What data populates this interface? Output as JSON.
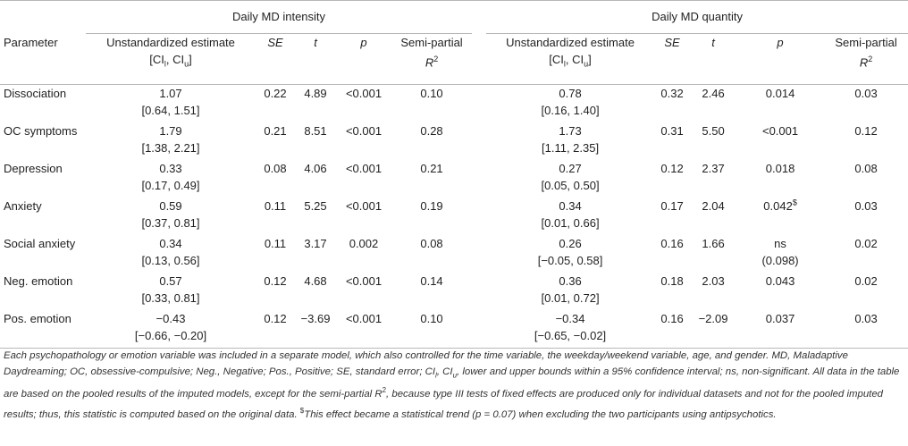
{
  "groups": {
    "intensity": "Daily MD intensity",
    "quantity": "Daily MD quantity"
  },
  "headers": {
    "parameter": "Parameter",
    "estimate": "Unstandardized estimate",
    "ci_open": "[CI",
    "ci_l": "l",
    "ci_sep": ", CI",
    "ci_u": "u",
    "ci_close": "]",
    "se": "SE",
    "t": "t",
    "p": "p",
    "semi": "Semi-partial",
    "r": "R",
    "r_sup": "2"
  },
  "rows": [
    {
      "param": "Dissociation",
      "i_est": "1.07",
      "i_ci": "[0.64, 1.51]",
      "i_se": "0.22",
      "i_t": "4.89",
      "i_p": "<0.001",
      "i_r2": "0.10",
      "q_est": "0.78",
      "q_ci": "[0.16, 1.40]",
      "q_se": "0.32",
      "q_t": "2.46",
      "q_p": "0.014",
      "q_p2": "",
      "q_p_sup": "",
      "q_r2": "0.03"
    },
    {
      "param": "OC symptoms",
      "i_est": "1.79",
      "i_ci": "[1.38, 2.21]",
      "i_se": "0.21",
      "i_t": "8.51",
      "i_p": "<0.001",
      "i_r2": "0.28",
      "q_est": "1.73",
      "q_ci": "[1.11, 2.35]",
      "q_se": "0.31",
      "q_t": "5.50",
      "q_p": "<0.001",
      "q_p2": "",
      "q_p_sup": "",
      "q_r2": "0.12"
    },
    {
      "param": "Depression",
      "i_est": "0.33",
      "i_ci": "[0.17, 0.49]",
      "i_se": "0.08",
      "i_t": "4.06",
      "i_p": "<0.001",
      "i_r2": "0.21",
      "q_est": "0.27",
      "q_ci": "[0.05, 0.50]",
      "q_se": "0.12",
      "q_t": "2.37",
      "q_p": "0.018",
      "q_p2": "",
      "q_p_sup": "",
      "q_r2": "0.08"
    },
    {
      "param": "Anxiety",
      "i_est": "0.59",
      "i_ci": "[0.37, 0.81]",
      "i_se": "0.11",
      "i_t": "5.25",
      "i_p": "<0.001",
      "i_r2": "0.19",
      "q_est": "0.34",
      "q_ci": "[0.01, 0.66]",
      "q_se": "0.17",
      "q_t": "2.04",
      "q_p": "0.042",
      "q_p2": "",
      "q_p_sup": "$",
      "q_r2": "0.03"
    },
    {
      "param": "Social anxiety",
      "i_est": "0.34",
      "i_ci": "[0.13, 0.56]",
      "i_se": "0.11",
      "i_t": "3.17",
      "i_p": "0.002",
      "i_r2": "0.08",
      "q_est": "0.26",
      "q_ci": "[−0.05, 0.58]",
      "q_se": "0.16",
      "q_t": "1.66",
      "q_p": "ns",
      "q_p2": "(0.098)",
      "q_p_sup": "",
      "q_r2": "0.02"
    },
    {
      "param": "Neg. emotion",
      "i_est": "0.57",
      "i_ci": "[0.33, 0.81]",
      "i_se": "0.12",
      "i_t": "4.68",
      "i_p": "<0.001",
      "i_r2": "0.14",
      "q_est": "0.36",
      "q_ci": "[0.01, 0.72]",
      "q_se": "0.18",
      "q_t": "2.03",
      "q_p": "0.043",
      "q_p2": "",
      "q_p_sup": "",
      "q_r2": "0.02"
    },
    {
      "param": "Pos. emotion",
      "i_est": "−0.43",
      "i_ci": "[−0.66, −0.20]",
      "i_se": "0.12",
      "i_t": "−3.69",
      "i_p": "<0.001",
      "i_r2": "0.10",
      "q_est": "−0.34",
      "q_ci": "[−0.65, −0.02]",
      "q_se": "0.16",
      "q_t": "−2.09",
      "q_p": "0.037",
      "q_p2": "",
      "q_p_sup": "",
      "q_r2": "0.03"
    }
  ],
  "note": {
    "main": "Each psychopathology or emotion variable was included in a separate model, which also controlled for the time variable, the weekday/weekend variable, age, and gender. MD, Maladaptive Daydreaming; OC, obsessive-compulsive; Neg., Negative; Pos., Positive; SE, standard error; CI",
    "sub_l": "l",
    "mid1": ", CI",
    "sub_u": "u",
    "mid2": ", lower and upper bounds within a 95% confidence interval; ns, non-significant. All data in the table are based on the pooled results of the imputed models, except for the semi-partial R",
    "sup_2": "2",
    "mid3": ", because type III tests of fixed effects are produced only for individual datasets and not for the pooled imputed results; thus, this statistic is computed based on the original data. ",
    "sup_dollar": "$",
    "end": "This effect became a statistical trend (p = 0.07) when excluding the two participants using antipsychotics."
  }
}
